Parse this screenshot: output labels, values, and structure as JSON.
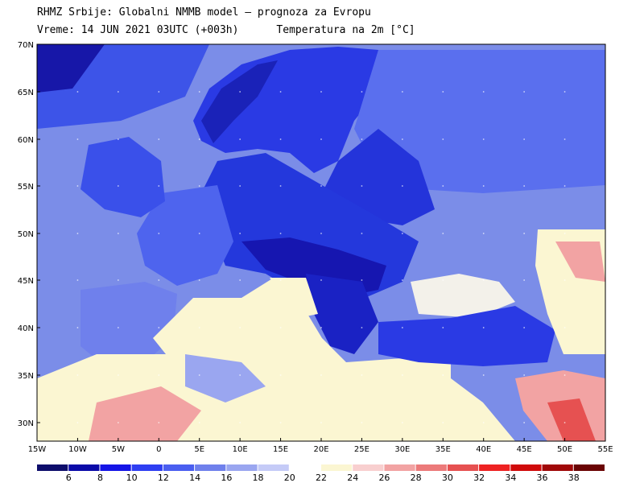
{
  "header": {
    "line1": "RHMZ Srbije: Globalni NMMB model — prognoza za Evropu",
    "line2": "Vreme: 14 JUN 2021 03UTC (+003h)      Temperatura na 2m [°C]"
  },
  "axes": {
    "lat_labels": [
      "70N",
      "65N",
      "60N",
      "55N",
      "50N",
      "45N",
      "40N",
      "35N",
      "30N"
    ],
    "lon_labels": [
      "15W",
      "10W",
      "5W",
      "0",
      "5E",
      "10E",
      "15E",
      "20E",
      "25E",
      "30E",
      "35E",
      "40E",
      "45E",
      "50E",
      "55E"
    ]
  },
  "colorbar": {
    "labels": [
      "6",
      "8",
      "10",
      "12",
      "14",
      "16",
      "18",
      "20",
      "22",
      "24",
      "26",
      "28",
      "30",
      "32",
      "34",
      "36",
      "38"
    ],
    "colors": [
      "#0d0d6b",
      "#0a0aa8",
      "#1414e6",
      "#2e3ef2",
      "#4a5ef0",
      "#6f80ec",
      "#9aa6f0",
      "#c5cbf7",
      "#ffffff",
      "#fbf6d2",
      "#f8cfcf",
      "#f2a3a3",
      "#ec7a7a",
      "#e65151",
      "#ee2222",
      "#d00a0a",
      "#a00808",
      "#6a0404"
    ]
  },
  "colors": {
    "ocean": "#7b8de8",
    "land_cool": "#2d45e6",
    "land_cold": "#1c2ccf",
    "warm": "#fbf6d2",
    "hot": "#f2a3a3"
  }
}
